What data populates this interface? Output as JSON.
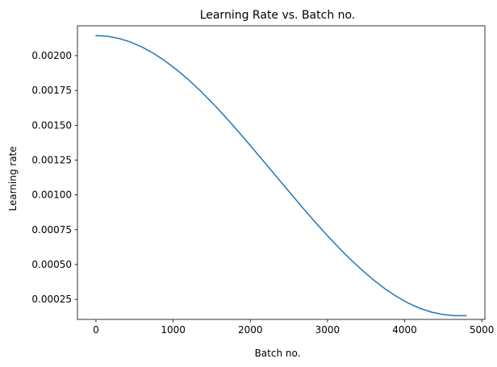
{
  "chart_data": {
    "type": "line",
    "title": "Learning Rate vs. Batch no.",
    "xlabel": "Batch no.",
    "ylabel": "Learning rate",
    "xlim": [
      -240,
      5040
    ],
    "ylim": [
      0.000106,
      0.002214
    ],
    "xticks": [
      0,
      1000,
      2000,
      3000,
      4000,
      5000
    ],
    "xtick_labels": [
      "0",
      "1000",
      "2000",
      "3000",
      "4000",
      "5000"
    ],
    "yticks": [
      0.00025,
      0.0005,
      0.00075,
      0.001,
      0.00125,
      0.0015,
      0.00175,
      0.002
    ],
    "ytick_labels": [
      "0.00025",
      "0.00050",
      "0.00075",
      "0.00100",
      "0.00125",
      "0.00150",
      "0.00175",
      "0.00200"
    ],
    "grid": false,
    "line_color": "#1f77b4",
    "series": [
      {
        "x": [
          0,
          150,
          300,
          450,
          600,
          750,
          900,
          1050,
          1200,
          1350,
          1500,
          1650,
          1800,
          1950,
          2100,
          2250,
          2400,
          2550,
          2700,
          2850,
          3000,
          3150,
          3300,
          3450,
          3600,
          3750,
          3900,
          4050,
          4200,
          4350,
          4500,
          4650,
          4800
        ],
        "y": [
          0.002144,
          0.002139,
          0.002123,
          0.002097,
          0.002061,
          0.002015,
          0.00196,
          0.001897,
          0.001826,
          0.001749,
          0.001665,
          0.001576,
          0.001483,
          0.001387,
          0.001289,
          0.00119,
          0.001091,
          0.000992,
          0.000894,
          0.000799,
          0.000707,
          0.000619,
          0.000536,
          0.000459,
          0.000388,
          0.000324,
          0.000269,
          0.000222,
          0.000185,
          0.000158,
          0.000141,
          0.000133,
          0.000133
        ]
      }
    ]
  }
}
